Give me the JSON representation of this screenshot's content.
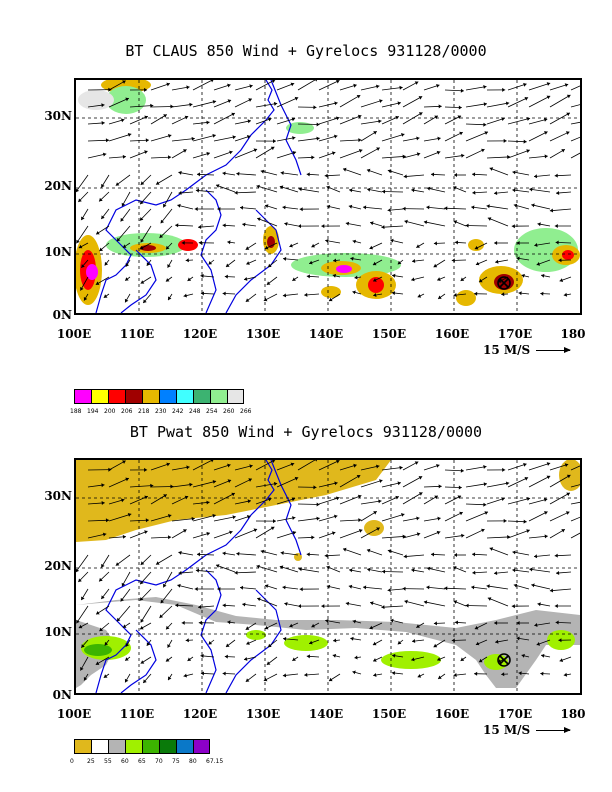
{
  "panels": [
    {
      "title": "BT CLAUS 850 Wind + Gyrelocs 931128/0000",
      "yticks": [
        "30N",
        "20N",
        "10N",
        "0N"
      ],
      "xticks": [
        "100E",
        "110E",
        "120E",
        "130E",
        "140E",
        "150E",
        "160E",
        "170E",
        "180"
      ],
      "scale_label": "15 M/S",
      "legend": {
        "labels": [
          "188",
          "194",
          "200",
          "206",
          "218",
          "230",
          "242",
          "248",
          "254",
          "260",
          "266"
        ],
        "colors": [
          "#ff00ff",
          "#ffff00",
          "#ff0000",
          "#a00000",
          "#e6b800",
          "#0080ff",
          "#40ffff",
          "#3cb371",
          "#90ee90",
          "#e6e6e6"
        ]
      }
    },
    {
      "title": "BT Pwat 850 Wind + Gyrelocs 931128/0000",
      "yticks": [
        "30N",
        "20N",
        "10N",
        "0N"
      ],
      "xticks": [
        "100E",
        "110E",
        "120E",
        "130E",
        "140E",
        "150E",
        "160E",
        "170E",
        "180"
      ],
      "scale_label": "15 M/S",
      "legend": {
        "labels": [
          "0",
          "25",
          "55",
          "60",
          "65",
          "70",
          "75",
          "80",
          "67.15"
        ],
        "colors": [
          "#e0b81c",
          "#ffffff",
          "#b4b4b4",
          "#a0f000",
          "#3cb400",
          "#0a7a0a",
          "#0a78c8",
          "#8c00c8"
        ]
      }
    }
  ]
}
